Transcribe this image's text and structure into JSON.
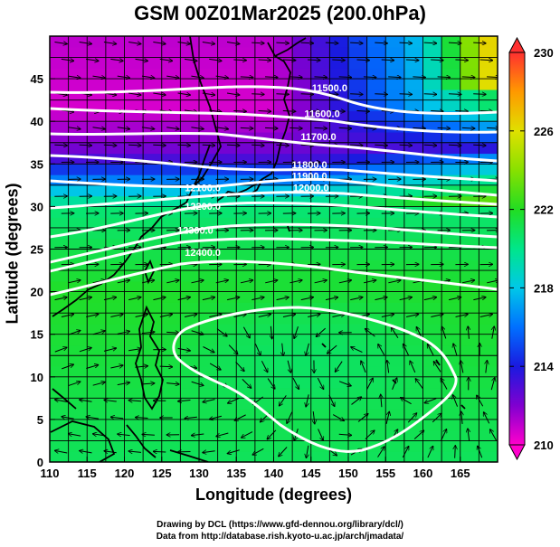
{
  "title": "GSM 00Z01Mar2025 (200.0hPa)",
  "xlabel": "Longitude (degrees)",
  "ylabel": "Latitude  (degrees)",
  "credits": [
    "Drawing by DCL (https://www.gfd-dennou.org/library/dcl/)",
    "Data from http://database.rish.kyoto-u.ac.jp/arch/jmadata/"
  ],
  "chart_data": {
    "type": "heatmap",
    "variable": "temperature with geopotential height contours and wind streamlines",
    "level": "200.0hPa",
    "x_range": [
      110,
      170
    ],
    "y_range": [
      0,
      50
    ],
    "x_ticks": [
      110,
      115,
      120,
      125,
      130,
      135,
      140,
      145,
      150,
      155,
      160,
      165
    ],
    "y_ticks": [
      0,
      5,
      10,
      15,
      20,
      25,
      30,
      35,
      40,
      45
    ],
    "colorbar": {
      "range": [
        210,
        230
      ],
      "tick_labels": [
        210,
        214,
        218,
        222,
        226,
        230
      ],
      "stops": [
        {
          "value": 210,
          "color": "#ff00cc"
        },
        {
          "value": 212,
          "color": "#8000d0"
        },
        {
          "value": 214,
          "color": "#1a1ae0"
        },
        {
          "value": 216,
          "color": "#0070ff"
        },
        {
          "value": 218,
          "color": "#00c8e8"
        },
        {
          "value": 220,
          "color": "#00e68a"
        },
        {
          "value": 222,
          "color": "#22dd22"
        },
        {
          "value": 224,
          "color": "#88e000"
        },
        {
          "value": 226,
          "color": "#e0e000"
        },
        {
          "value": 228,
          "color": "#ff9900"
        },
        {
          "value": 230,
          "color": "#ff3030"
        }
      ]
    },
    "contour_labels": [
      {
        "label": "11500.0",
        "lon": 147.5,
        "lat": 43.5
      },
      {
        "label": "11600.0",
        "lon": 146.5,
        "lat": 40.5
      },
      {
        "label": "11700.0",
        "lon": 146.0,
        "lat": 37.8
      },
      {
        "label": "11800.0",
        "lon": 144.8,
        "lat": 34.5
      },
      {
        "label": "11900.0",
        "lon": 144.8,
        "lat": 33.2
      },
      {
        "label": "12000.0",
        "lon": 145.0,
        "lat": 31.8
      },
      {
        "label": "12100.0",
        "lon": 130.5,
        "lat": 31.8
      },
      {
        "label": "12200.0",
        "lon": 130.5,
        "lat": 29.6
      },
      {
        "label": "12300.0",
        "lon": 129.5,
        "lat": 26.8
      },
      {
        "label": "12400.0",
        "lon": 130.5,
        "lat": 24.2
      }
    ]
  }
}
